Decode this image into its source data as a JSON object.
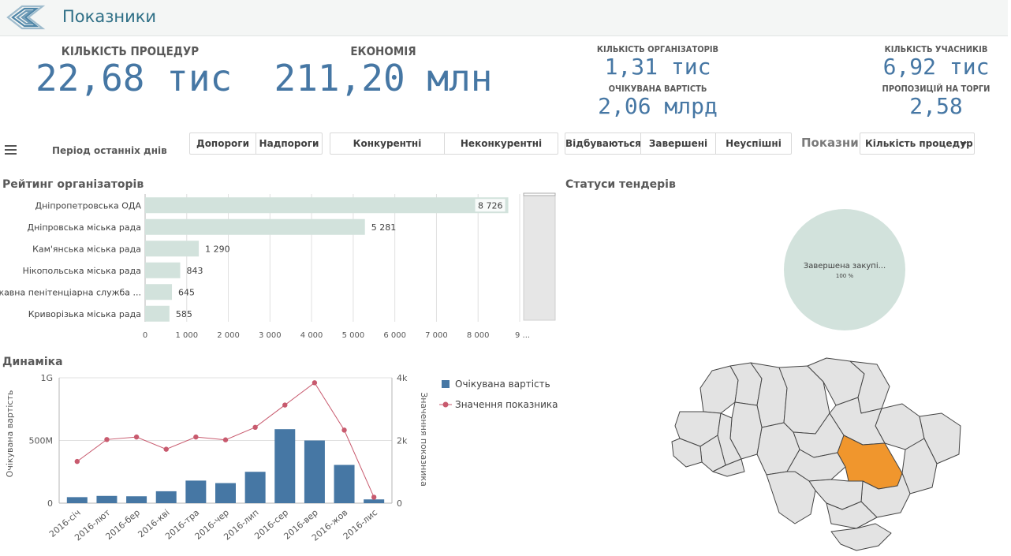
{
  "header": {
    "title": "Показники",
    "logo_icon": "diamond-stripes-logo"
  },
  "kpis": {
    "procedures": {
      "label": "КІЛЬКІСТЬ ПРОЦЕДУР",
      "value": "22,68 тис"
    },
    "savings": {
      "label": "ЕКОНОМІЯ",
      "value": "211,20 млн"
    },
    "organizers": {
      "label": "КІЛЬКІСТЬ ОРГАНІЗАТОРІВ",
      "value": "1,31 тис"
    },
    "expected_cost": {
      "label": "ОЧІКУВАНА ВАРТІСТЬ",
      "value": "2,06 млрд"
    },
    "participants": {
      "label": "КІЛЬКІСТЬ УЧАСНИКІВ",
      "value": "6,92 тис"
    },
    "bids": {
      "label": "ПРОПОЗИЦІЙ НА ТОРГИ",
      "value": "2,58"
    }
  },
  "filters": {
    "period_label": "Період останніх днів",
    "threshold": [
      "Допороги",
      "Надпороги"
    ],
    "competition": [
      "Конкурентні",
      "Неконкурентні"
    ],
    "status": [
      "Відбуваються",
      "Завершені",
      "Неуспішні"
    ],
    "indicator_label": "Показник",
    "indicator_value": "Кількість процедур"
  },
  "sections": {
    "rating": "Рейтинг організаторів",
    "statuses": "Статуси тендерів",
    "dynamics": "Динаміка"
  },
  "colors": {
    "bar_light": "#d2e2dc",
    "bar_blue": "#4677a4",
    "line_red": "#c85a6e",
    "region_highlight": "#f0962d",
    "region_default": "#e3e3e3"
  },
  "chart_data": [
    {
      "type": "bar",
      "orientation": "horizontal",
      "categories": [
        "Дніпропетровська ОДА",
        "Дніпровська міська рада",
        "Кам'янська міська рада",
        "Нікопольська міська рада",
        "Державна пенітенціарна служба ...",
        "Криворізька міська рада"
      ],
      "values": [
        8726,
        5281,
        1290,
        843,
        645,
        585
      ],
      "value_labels": [
        "8 726",
        "5 281",
        "1 290",
        "843",
        "645",
        "585"
      ],
      "x_ticks": [
        "0",
        "1 000",
        "2 000",
        "3 000",
        "4 000",
        "5 000",
        "6 000",
        "7 000",
        "8 000",
        "9 ..."
      ],
      "xlim": [
        0,
        9000
      ]
    },
    {
      "type": "pie",
      "slices": [
        {
          "label": "Завершена закупі...",
          "value": 100,
          "value_label": "100 %"
        }
      ]
    },
    {
      "type": "bar+line",
      "categories": [
        "2016-січ",
        "2016-лют",
        "2016-бер",
        "2016-кві",
        "2016-тра",
        "2016-чер",
        "2016-лип",
        "2016-сер",
        "2016-вер",
        "2016-жов",
        "2016-лис"
      ],
      "series": [
        {
          "name": "Очікувана вартість",
          "type": "bar",
          "axis": "left",
          "values": [
            48000000,
            58000000,
            55000000,
            95000000,
            180000000,
            160000000,
            250000000,
            590000000,
            500000000,
            305000000,
            30000000
          ]
        },
        {
          "name": "Значення показника",
          "type": "line",
          "axis": "right",
          "values": [
            1330,
            2030,
            2110,
            1720,
            2110,
            2020,
            2420,
            3130,
            3840,
            2330,
            190
          ]
        }
      ],
      "ylabel_left": "Очікувана вартість",
      "ylabel_right": "Значення показника",
      "ylim_left": [
        0,
        1000000000
      ],
      "ylim_right": [
        0,
        4000
      ],
      "left_ticks": [
        "0",
        "500M",
        "1G"
      ],
      "right_ticks": [
        "0",
        "2k",
        "4k"
      ],
      "legend_position": "right"
    }
  ]
}
